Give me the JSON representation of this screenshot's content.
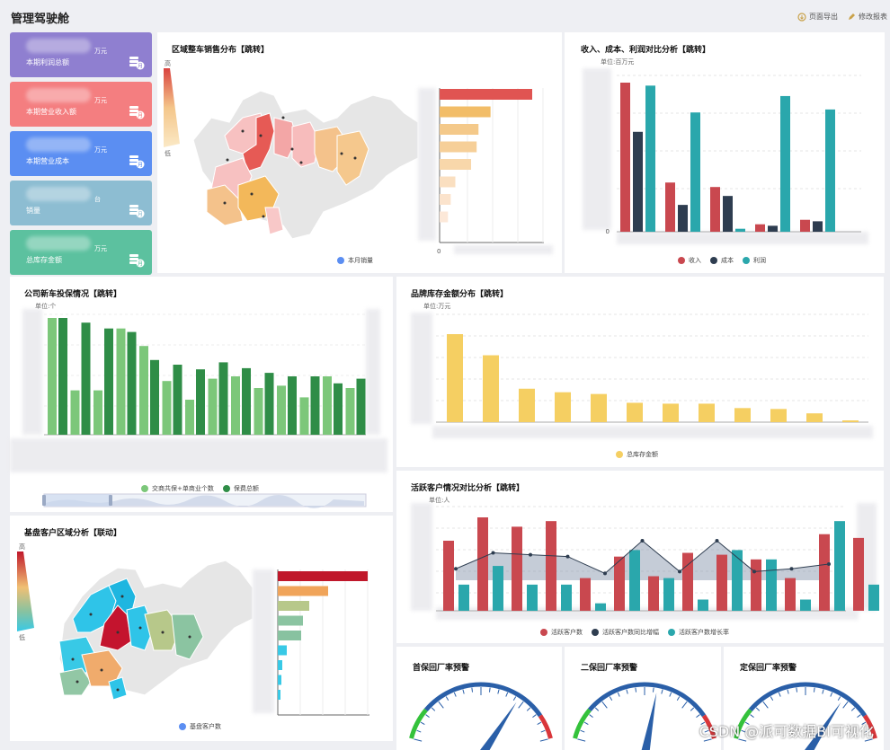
{
  "header": {
    "title": "管理驾驶舱",
    "export_label": "页面导出",
    "edit_label": "修改报表"
  },
  "kpis": [
    {
      "unit": "万元",
      "label": "本期利润总额",
      "color": "#8f7fd0",
      "badge": "月"
    },
    {
      "unit": "万元",
      "label": "本期营业收入额",
      "color": "#f47e80",
      "badge": "月"
    },
    {
      "unit": "万元",
      "label": "本期营业成本",
      "color": "#5b8ef2",
      "badge": "月"
    },
    {
      "unit": "台",
      "label": "销量",
      "color": "#8dbdd2",
      "badge": "月"
    },
    {
      "unit": "万元",
      "label": "总库存金额",
      "color": "#5cc19f",
      "badge": "月"
    }
  ],
  "region_sales": {
    "title": "区域整车销售分布【跳转】",
    "legend_high": "高",
    "legend_low": "低",
    "legend_series": "本月销量",
    "axis_zero": "0"
  },
  "finance": {
    "title": "收入、成本、利润对比分析【跳转】",
    "unit": "单位:百万元",
    "axis_zero": "0",
    "legend": [
      "收入",
      "成本",
      "利润"
    ]
  },
  "new_car": {
    "title": "公司新车投保情况【跳转】",
    "unit": "单位:个",
    "legend": [
      "交商共保+单商业个数",
      "保费总额"
    ]
  },
  "brand_inventory": {
    "title": "品牌库存金额分布【跳转】",
    "unit": "单位:万元",
    "legend": [
      "总库存金额"
    ]
  },
  "customer_region": {
    "title": "基盘客户区域分析【联动】",
    "legend_high": "高",
    "legend_low": "低",
    "legend_series": "基盘客户数"
  },
  "active_customers": {
    "title": "活跃客户情况对比分析【跳转】",
    "unit": "单位:人",
    "legend": [
      "活跃客户数",
      "活跃客户数同比增幅",
      "活跃客户数增长率"
    ]
  },
  "gauges": [
    {
      "title": "首保回厂率预警",
      "needle": 0.72
    },
    {
      "title": "二保回厂率预警",
      "needle": 0.57
    },
    {
      "title": "定保回厂率预警",
      "needle": 0.72
    }
  ],
  "watermark": "CSDN @派可数据BI可视化",
  "colors": {
    "finance_income": "#c9484f",
    "finance_cost": "#2e3d50",
    "finance_profit": "#2aa7ac",
    "brand": "#f5cf62",
    "new_car_light": "#7cc77a",
    "new_car_dark": "#2f8d47",
    "active_bar": "#c9484f",
    "active_bar2": "#2aa7ac",
    "active_line": "#2e3d50"
  },
  "chart_data": [
    {
      "type": "bar",
      "chart": "region_sales_ranking",
      "series": [
        {
          "name": "本月销量",
          "values": [
            100,
            55,
            42,
            40,
            34,
            17,
            12,
            9
          ]
        }
      ]
    },
    {
      "type": "bar",
      "chart": "finance",
      "series": [
        {
          "name": "收入",
          "values": [
            100,
            33,
            30,
            5,
            8
          ]
        },
        {
          "name": "成本",
          "values": [
            67,
            18,
            24,
            4,
            7
          ]
        },
        {
          "name": "利润",
          "values": [
            98,
            80,
            2,
            91,
            82
          ]
        }
      ]
    },
    {
      "type": "bar",
      "chart": "new_car",
      "series": [
        {
          "name": "交商共保+单商业个数",
          "values": [
            100,
            38,
            38,
            91,
            76,
            46,
            30,
            48,
            50,
            40,
            42,
            32,
            50,
            40
          ]
        },
        {
          "name": "保费总额",
          "values": [
            100,
            96,
            91,
            88,
            64,
            60,
            56,
            62,
            57,
            53,
            50,
            50,
            44,
            48
          ]
        }
      ]
    },
    {
      "type": "bar",
      "chart": "brand_inventory",
      "series": [
        {
          "name": "总库存金额",
          "values": [
            100,
            76,
            38,
            34,
            32,
            22,
            21,
            21,
            16,
            15,
            10,
            2
          ]
        }
      ]
    },
    {
      "type": "bar",
      "chart": "active_customers",
      "series": [
        {
          "name": "活跃客户数",
          "values": [
            75,
            100,
            90,
            96,
            35,
            58,
            37,
            62,
            60,
            55,
            35,
            82,
            78
          ]
        },
        {
          "name": "活跃客户数增长率",
          "values": [
            28,
            48,
            28,
            28,
            8,
            65,
            35,
            12,
            65,
            55,
            12,
            96,
            28
          ]
        },
        {
          "name": "活跃客户数同比增幅",
          "values": [
            45,
            62,
            60,
            58,
            40,
            75,
            42,
            75,
            42,
            45,
            50
          ]
        }
      ]
    },
    {
      "type": "bar",
      "chart": "customer_region_ranking",
      "series": [
        {
          "name": "基盘客户数",
          "values": [
            100,
            56,
            35,
            28,
            26,
            10,
            5,
            4,
            3
          ]
        }
      ]
    }
  ]
}
